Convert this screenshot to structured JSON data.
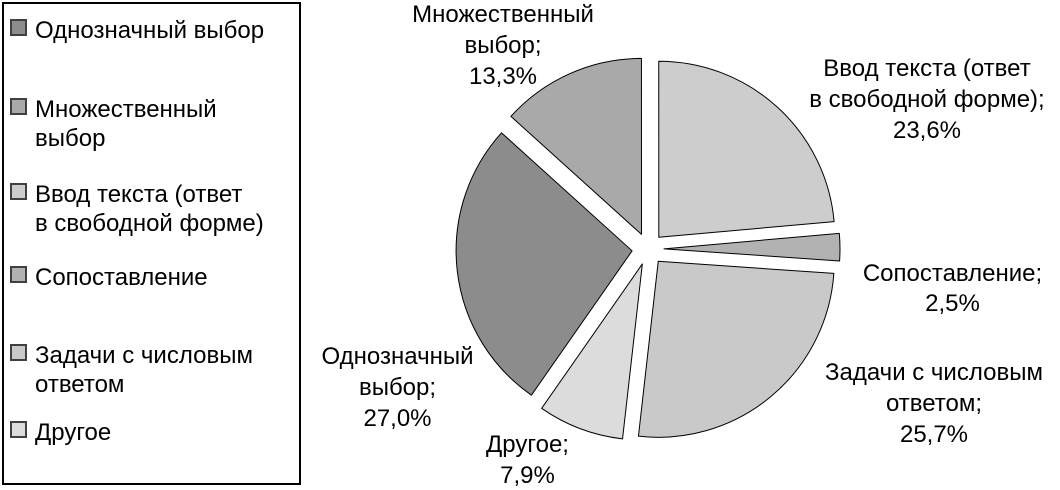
{
  "chart_data": {
    "type": "pie",
    "exploded": true,
    "start_angle_deg": 214.9,
    "direction": "clockwise",
    "legend_position": "left",
    "grid": false,
    "title": "",
    "slices": [
      {
        "name": "Однозначный выбор",
        "value": 27.0,
        "pct_text": "27,0%",
        "color": "#8c8c8c"
      },
      {
        "name": "Множественный выбор",
        "value": 13.3,
        "pct_text": "13,3%",
        "color": "#a9a9a9"
      },
      {
        "name": "Ввод текста (ответ в свободной форме)",
        "value": 23.6,
        "pct_text": "23,6%",
        "color": "#cdcdcd"
      },
      {
        "name": "Сопоставление",
        "value": 2.5,
        "pct_text": "2,5%",
        "color": "#b2b2b2"
      },
      {
        "name": "Задачи с числовым ответом",
        "value": 25.7,
        "pct_text": "25,7%",
        "color": "#c9c9c9"
      },
      {
        "name": "Другое",
        "value": 7.9,
        "pct_text": "7,9%",
        "color": "#dcdcdc"
      }
    ]
  },
  "legend": {
    "items": [
      {
        "label": "Однозначный выбор"
      },
      {
        "label": "Множественный\nвыбор"
      },
      {
        "label": "Ввод текста (ответ\nв свободной форме)"
      },
      {
        "label": "Сопоставление"
      },
      {
        "label": "Задачи с числовым\nответом"
      },
      {
        "label": "Другое"
      }
    ]
  },
  "labels": {
    "single_choice": "Однозначный\nвыбор;\n27,0%",
    "multiple_choice": "Множественный\nвыбор;\n13,3%",
    "text_input": "Ввод текста (ответ\nв свободной форме);\n23,6%",
    "matching": "Сопоставление;\n2,5%",
    "numeric": "Задачи с числовым\nответом;\n25,7%",
    "other": "Другое;\n7,9%"
  }
}
